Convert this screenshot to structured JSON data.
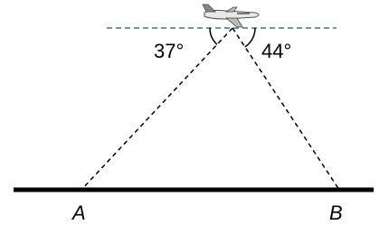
{
  "angles": [
    {
      "label": "37°"
    },
    {
      "label": "44°"
    }
  ],
  "points": [
    {
      "label": "A"
    },
    {
      "label": "B"
    }
  ]
}
